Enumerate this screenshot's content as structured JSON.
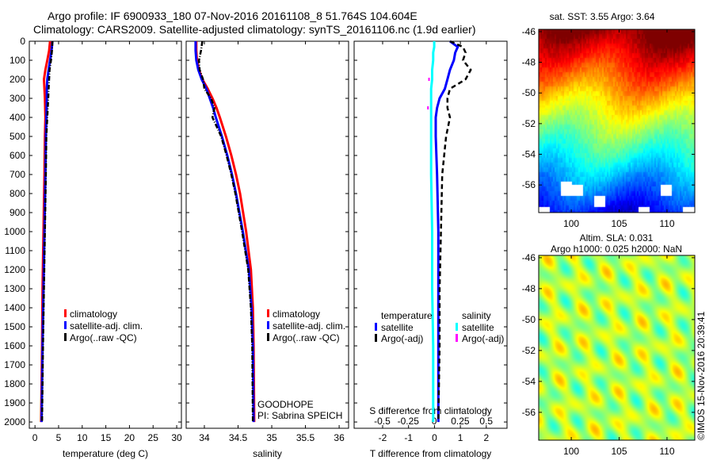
{
  "title": {
    "line1": "Argo profile: IF 6900933_180 07-Nov-2016 20161108_8 51.764S 104.604E",
    "line2": "Climatology: CARS2009. Satellite-adjusted climatology: synTS_20161106.nc (1.9d earlier)"
  },
  "credit": "©IMOS 15-Nov-2016 20:39:41",
  "colors": {
    "climatology": "#ff0000",
    "satellite": "#0000ff",
    "argo": "#000000",
    "sal_satellite": "#00ffff",
    "sal_argo": "#ff00ff"
  },
  "chart_data": [
    {
      "type": "line",
      "name": "temperature",
      "xlabel": "temperature (deg C)",
      "ylabel": "",
      "xlim": [
        -1.2,
        31
      ],
      "ylim": [
        2033,
        0
      ],
      "xticks": [
        "0",
        "5",
        "10",
        "15",
        "20",
        "25",
        "30"
      ],
      "xtick_values": [
        0,
        5,
        10,
        15,
        20,
        25,
        30
      ],
      "yticks": [
        "0",
        "100",
        "200",
        "300",
        "400",
        "500",
        "600",
        "700",
        "800",
        "900",
        "1000",
        "1100",
        "1200",
        "1300",
        "1400",
        "1500",
        "1600",
        "1700",
        "1800",
        "1900",
        "2000"
      ],
      "depth": [
        0,
        50,
        100,
        150,
        200,
        250,
        300,
        400,
        500,
        700,
        1000,
        1300,
        1600,
        2000
      ],
      "series": [
        {
          "name": "climatology",
          "color": "#ff0000",
          "style": "solid",
          "values": [
            3.2,
            3.0,
            2.6,
            2.2,
            1.9,
            2.0,
            2.1,
            2.2,
            2.1,
            2.0,
            1.8,
            1.6,
            1.5,
            1.3
          ]
        },
        {
          "name": "satellite-adj. clim.",
          "color": "#0000ff",
          "style": "solid",
          "values": [
            3.7,
            3.5,
            3.2,
            2.9,
            2.6,
            2.5,
            2.5,
            2.4,
            2.3,
            2.2,
            2.0,
            1.8,
            1.6,
            1.4
          ]
        },
        {
          "name": "Argo(..raw -QC)",
          "color": "#000000",
          "style": "dashdot",
          "values": [
            3.7,
            3.6,
            3.4,
            3.1,
            3.0,
            2.9,
            2.8,
            2.6,
            2.4,
            2.3,
            2.1,
            1.9,
            1.7,
            1.5
          ]
        }
      ],
      "legend": [
        "climatology",
        "satellite-adj. clim.",
        "Argo(..raw -QC)"
      ],
      "legend_position": "lower-right"
    },
    {
      "type": "line",
      "name": "salinity",
      "xlabel": "salinity",
      "xlim": [
        33.73,
        36.14
      ],
      "ylim": [
        2033,
        0
      ],
      "xticks": [
        "34",
        "34.5",
        "35",
        "35.5",
        "36"
      ],
      "xtick_values": [
        34,
        34.5,
        35,
        35.5,
        36
      ],
      "depth": [
        0,
        50,
        100,
        150,
        200,
        250,
        300,
        350,
        400,
        500,
        600,
        700,
        800,
        1000,
        1200,
        1400,
        1600,
        2000
      ],
      "series": [
        {
          "name": "climatology",
          "color": "#ff0000",
          "style": "solid",
          "values": [
            33.88,
            33.88,
            33.89,
            33.92,
            33.97,
            34.05,
            34.12,
            34.18,
            34.23,
            34.32,
            34.4,
            34.47,
            34.53,
            34.62,
            34.69,
            34.72,
            34.73,
            34.74
          ]
        },
        {
          "name": "satellite-adj. clim.",
          "color": "#0000ff",
          "style": "solid",
          "values": [
            33.87,
            33.87,
            33.88,
            33.91,
            33.96,
            34.03,
            34.08,
            34.13,
            34.17,
            34.26,
            34.34,
            34.41,
            34.47,
            34.57,
            34.66,
            34.7,
            34.72,
            34.73
          ]
        },
        {
          "name": "Argo(..raw -QC)",
          "color": "#000000",
          "style": "dashdot",
          "values": [
            33.97,
            33.95,
            33.92,
            33.93,
            33.98,
            34.0,
            34.1,
            34.15,
            34.12,
            34.25,
            34.33,
            34.4,
            34.46,
            34.56,
            34.65,
            34.69,
            34.71,
            34.72
          ]
        }
      ],
      "legend": [
        "climatology",
        "satellite-adj. clim.",
        "Argo(..raw -QC)"
      ],
      "legend_position": "lower-right",
      "annotations": [
        "GOODHOPE",
        "PI: Sabrina SPEICH"
      ]
    },
    {
      "type": "line",
      "name": "difference",
      "xlabel": "T difference from climatology",
      "x2label": "S difference from climatology",
      "xlim": [
        -3.1,
        2.8
      ],
      "x2lim": [
        -0.77,
        0.7
      ],
      "ylim": [
        2033,
        0
      ],
      "xticks": [
        "-2",
        "-1",
        "0",
        "1",
        "2"
      ],
      "xtick_values": [
        -2,
        -1,
        0,
        1,
        2
      ],
      "x2ticks": [
        "-0.5",
        "-0.25",
        "0",
        "0.25",
        "0.5"
      ],
      "x2tick_values": [
        -0.5,
        -0.25,
        0,
        0.25,
        0.5
      ],
      "depth": [
        0,
        30,
        60,
        100,
        150,
        200,
        250,
        300,
        350,
        400,
        500,
        700,
        1000,
        1300,
        1600,
        2000
      ],
      "series": [
        {
          "name": "temperature satellite",
          "axis": "T",
          "color": "#0000ff",
          "style": "solid",
          "values": [
            0.6,
            0.9,
            0.8,
            0.75,
            0.6,
            0.5,
            0.4,
            0.2,
            0.1,
            0.05,
            0.05,
            0.1,
            0.15,
            0.15,
            0.15,
            0.15
          ]
        },
        {
          "name": "temperature Argo(-adj)",
          "axis": "T",
          "color": "#000000",
          "style": "dashed",
          "values": [
            0.6,
            1.1,
            1.2,
            1.1,
            1.4,
            1.2,
            0.6,
            0.5,
            0.5,
            0.6,
            0.45,
            0.3,
            0.25,
            0.2,
            0.2,
            0.15
          ]
        },
        {
          "name": "salinity satellite",
          "axis": "S",
          "color": "#00ffff",
          "style": "solid",
          "values": [
            0.0,
            0.0,
            -0.01,
            -0.01,
            -0.02,
            -0.02,
            -0.03,
            -0.03,
            -0.03,
            -0.03,
            -0.03,
            -0.03,
            -0.02,
            -0.02,
            -0.01,
            -0.01
          ]
        },
        {
          "name": "salinity Argo(-adj)",
          "axis": "S",
          "color": "#ff00ff",
          "style": "dots",
          "values": [
            null,
            null,
            null,
            null,
            null,
            -0.05,
            null,
            null,
            -0.06,
            null,
            null,
            null,
            null,
            null,
            null,
            null
          ]
        }
      ],
      "legend_headers": [
        "temperature",
        "salinity"
      ],
      "legend": [
        "satellite",
        "Argo(-adj)",
        "satellite",
        "Argo(-adj)"
      ],
      "legend_position": "lower-center"
    },
    {
      "type": "heatmap",
      "name": "sst-map",
      "title": "sat. SST: 3.55 Argo: 3.64",
      "xlim": [
        96.6,
        112.9
      ],
      "ylim": [
        -57.8,
        -45.85
      ],
      "xticks": [
        "100",
        "105",
        "110"
      ],
      "xtick_values": [
        100,
        105,
        110
      ],
      "yticks": [
        "-46",
        "-48",
        "-50",
        "-52",
        "-54",
        "-56"
      ],
      "ytick_values": [
        -46,
        -48,
        -50,
        -52,
        -54,
        -56
      ]
    },
    {
      "type": "heatmap",
      "name": "sla-map",
      "title": "Altim. SLA: 0.031",
      "subtitle": "Argo h1000: 0.025 h2000: NaN",
      "xlim": [
        96.6,
        112.9
      ],
      "ylim": [
        -57.8,
        -45.85
      ],
      "xticks": [
        "100",
        "105",
        "110"
      ],
      "xtick_values": [
        100,
        105,
        110
      ],
      "yticks": [
        "-46",
        "-48",
        "-50",
        "-52",
        "-54",
        "-56"
      ],
      "ytick_values": [
        -46,
        -48,
        -50,
        -52,
        -54,
        -56
      ]
    }
  ]
}
